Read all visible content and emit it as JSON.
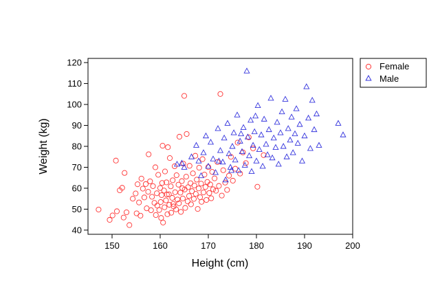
{
  "chart_data": {
    "type": "scatter",
    "title": "",
    "xlabel": "Height (cm)",
    "ylabel": "Weight (kg)",
    "xlim": [
      145,
      200
    ],
    "ylim": [
      38,
      122
    ],
    "xticks": [
      150,
      160,
      170,
      180,
      190,
      200
    ],
    "yticks": [
      40,
      50,
      60,
      70,
      80,
      90,
      100,
      110,
      120
    ],
    "grid": false,
    "legend": "outside-right-top",
    "series": [
      {
        "name": "Female",
        "marker": "circle",
        "color": "#ff3333",
        "points": [
          [
            147.2,
            49.8
          ],
          [
            149.5,
            44.9
          ],
          [
            150.1,
            47.0
          ],
          [
            150.8,
            73.2
          ],
          [
            151.0,
            49.0
          ],
          [
            151.6,
            59.0
          ],
          [
            152.1,
            60.2
          ],
          [
            152.4,
            46.0
          ],
          [
            152.6,
            67.3
          ],
          [
            153.0,
            48.5
          ],
          [
            153.6,
            42.4
          ],
          [
            154.3,
            55.0
          ],
          [
            154.9,
            57.5
          ],
          [
            155.1,
            48.0
          ],
          [
            155.3,
            61.9
          ],
          [
            155.6,
            53.2
          ],
          [
            155.9,
            46.9
          ],
          [
            156.1,
            64.6
          ],
          [
            156.4,
            59.8
          ],
          [
            156.7,
            55.6
          ],
          [
            157.0,
            62.0
          ],
          [
            157.2,
            50.4
          ],
          [
            157.5,
            58.3
          ],
          [
            157.6,
            76.2
          ],
          [
            157.9,
            63.3
          ],
          [
            158.1,
            49.5
          ],
          [
            158.3,
            55.9
          ],
          [
            158.5,
            61.0
          ],
          [
            158.8,
            53.0
          ],
          [
            159.0,
            70.0
          ],
          [
            159.1,
            47.2
          ],
          [
            159.3,
            57.6
          ],
          [
            159.4,
            51.7
          ],
          [
            159.6,
            66.4
          ],
          [
            159.8,
            49.6
          ],
          [
            160.0,
            60.1
          ],
          [
            160.1,
            53.4
          ],
          [
            160.2,
            45.8
          ],
          [
            160.3,
            56.7
          ],
          [
            160.5,
            80.3
          ],
          [
            160.6,
            43.6
          ],
          [
            160.8,
            58.9
          ],
          [
            160.9,
            50.9
          ],
          [
            161.0,
            68.0
          ],
          [
            161.2,
            54.2
          ],
          [
            161.3,
            62.8
          ],
          [
            161.5,
            47.6
          ],
          [
            161.6,
            79.6
          ],
          [
            161.8,
            57.1
          ],
          [
            161.9,
            52.1
          ],
          [
            162.0,
            74.4
          ],
          [
            162.2,
            60.9
          ],
          [
            162.3,
            48.3
          ],
          [
            162.5,
            55.4
          ],
          [
            162.6,
            63.8
          ],
          [
            162.8,
            51.3
          ],
          [
            163.0,
            70.5
          ],
          [
            163.1,
            58.1
          ],
          [
            163.3,
            49.9
          ],
          [
            163.4,
            66.2
          ],
          [
            163.6,
            54.6
          ],
          [
            163.8,
            61.7
          ],
          [
            163.9,
            52.8
          ],
          [
            164.0,
            84.6
          ],
          [
            164.2,
            57.9
          ],
          [
            164.3,
            48.7
          ],
          [
            164.5,
            63.4
          ],
          [
            164.7,
            55.1
          ],
          [
            164.8,
            71.7
          ],
          [
            165.0,
            104.1
          ],
          [
            165.1,
            59.4
          ],
          [
            165.2,
            50.6
          ],
          [
            165.4,
            65.5
          ],
          [
            165.5,
            85.9
          ],
          [
            165.7,
            53.7
          ],
          [
            165.8,
            60.5
          ],
          [
            166.0,
            56.3
          ],
          [
            166.1,
            70.7
          ],
          [
            166.3,
            62.4
          ],
          [
            166.4,
            52.3
          ],
          [
            166.6,
            58.6
          ],
          [
            166.8,
            67.1
          ],
          [
            167.0,
            54.9
          ],
          [
            167.1,
            61.3
          ],
          [
            167.3,
            75.5
          ],
          [
            167.4,
            57.3
          ],
          [
            167.6,
            64.1
          ],
          [
            167.8,
            50.1
          ],
          [
            168.0,
            59.9
          ],
          [
            168.1,
            69.8
          ],
          [
            168.3,
            55.7
          ],
          [
            168.5,
            62.2
          ],
          [
            168.6,
            53.5
          ],
          [
            168.8,
            73.9
          ],
          [
            169.0,
            58.0
          ],
          [
            169.2,
            66.5
          ],
          [
            169.4,
            60.6
          ],
          [
            169.6,
            54.4
          ],
          [
            169.8,
            63.0
          ],
          [
            170.0,
            70.1
          ],
          [
            170.2,
            57.7
          ],
          [
            170.4,
            61.8
          ],
          [
            170.6,
            55.2
          ],
          [
            170.8,
            67.8
          ],
          [
            171.0,
            59.5
          ],
          [
            171.3,
            64.7
          ],
          [
            171.6,
            58.8
          ],
          [
            171.9,
            72.5
          ],
          [
            172.2,
            61.1
          ],
          [
            172.5,
            105.0
          ],
          [
            172.8,
            56.5
          ],
          [
            173.1,
            68.6
          ],
          [
            173.5,
            62.7
          ],
          [
            173.9,
            59.2
          ],
          [
            174.3,
            66.0
          ],
          [
            174.7,
            75.0
          ],
          [
            175.1,
            63.6
          ],
          [
            175.6,
            69.3
          ],
          [
            176.1,
            81.8
          ],
          [
            176.6,
            67.0
          ],
          [
            177.2,
            77.1
          ],
          [
            177.8,
            72.0
          ],
          [
            178.4,
            84.3
          ],
          [
            179.3,
            79.0
          ],
          [
            180.2,
            60.7
          ],
          [
            181.5,
            75.8
          ],
          [
            160.4,
            62.5
          ],
          [
            161.4,
            57.0
          ],
          [
            162.7,
            52.5
          ],
          [
            164.6,
            60.0
          ]
        ]
      },
      {
        "name": "Male",
        "marker": "triangle",
        "color": "#3333dd",
        "points": [
          [
            163.5,
            71.5
          ],
          [
            164.5,
            72.0
          ],
          [
            165.0,
            70.0
          ],
          [
            166.5,
            75.0
          ],
          [
            167.5,
            80.5
          ],
          [
            168.0,
            73.0
          ],
          [
            168.5,
            66.0
          ],
          [
            169.0,
            77.0
          ],
          [
            169.5,
            85.0
          ],
          [
            170.0,
            70.5
          ],
          [
            170.5,
            82.0
          ],
          [
            171.0,
            74.0
          ],
          [
            171.5,
            67.5
          ],
          [
            172.0,
            88.5
          ],
          [
            172.5,
            78.0
          ],
          [
            173.0,
            72.5
          ],
          [
            173.3,
            84.0
          ],
          [
            173.6,
            64.0
          ],
          [
            174.0,
            91.0
          ],
          [
            174.3,
            76.5
          ],
          [
            174.6,
            70.0
          ],
          [
            175.0,
            80.0
          ],
          [
            175.3,
            86.5
          ],
          [
            175.6,
            73.5
          ],
          [
            176.0,
            95.0
          ],
          [
            176.3,
            68.5
          ],
          [
            176.6,
            82.5
          ],
          [
            177.0,
            77.5
          ],
          [
            177.3,
            89.0
          ],
          [
            177.6,
            71.0
          ],
          [
            178.0,
            116.0
          ],
          [
            178.2,
            84.5
          ],
          [
            178.5,
            75.5
          ],
          [
            178.8,
            92.5
          ],
          [
            179.0,
            68.0
          ],
          [
            179.3,
            80.5
          ],
          [
            179.6,
            87.0
          ],
          [
            180.0,
            73.0
          ],
          [
            180.3,
            99.5
          ],
          [
            180.6,
            78.5
          ],
          [
            181.0,
            85.5
          ],
          [
            181.3,
            70.5
          ],
          [
            181.6,
            93.0
          ],
          [
            182.0,
            81.0
          ],
          [
            182.3,
            76.0
          ],
          [
            182.6,
            88.0
          ],
          [
            183.0,
            103.0
          ],
          [
            183.3,
            74.5
          ],
          [
            183.6,
            84.0
          ],
          [
            184.0,
            79.5
          ],
          [
            184.3,
            91.5
          ],
          [
            184.6,
            71.5
          ],
          [
            185.0,
            86.5
          ],
          [
            185.3,
            96.5
          ],
          [
            185.6,
            80.0
          ],
          [
            186.0,
            102.5
          ],
          [
            186.3,
            75.0
          ],
          [
            186.6,
            88.5
          ],
          [
            187.0,
            83.0
          ],
          [
            187.3,
            94.0
          ],
          [
            187.6,
            77.0
          ],
          [
            188.0,
            86.0
          ],
          [
            188.3,
            98.0
          ],
          [
            188.6,
            81.5
          ],
          [
            189.0,
            90.5
          ],
          [
            189.5,
            73.0
          ],
          [
            190.0,
            85.0
          ],
          [
            190.4,
            108.5
          ],
          [
            190.8,
            93.5
          ],
          [
            191.2,
            79.0
          ],
          [
            191.6,
            102.0
          ],
          [
            192.0,
            88.0
          ],
          [
            192.5,
            95.5
          ],
          [
            193.0,
            80.5
          ],
          [
            197.0,
            91.0
          ],
          [
            198.0,
            85.5
          ],
          [
            172.2,
            73.0
          ],
          [
            174.8,
            68.5
          ],
          [
            176.8,
            86.0
          ],
          [
            179.8,
            94.5
          ]
        ]
      }
    ]
  }
}
